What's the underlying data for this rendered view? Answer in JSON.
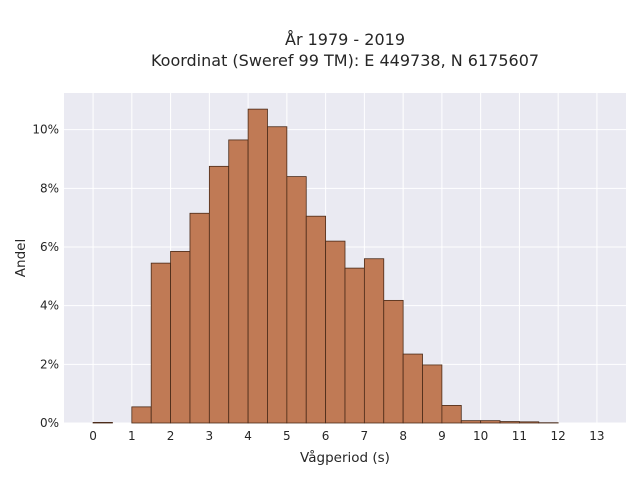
{
  "chart_data": {
    "type": "bar",
    "title": "År 1979 - 2019",
    "subtitle": "Koordinat (Sweref 99 TM): E 449738, N 6175607",
    "xlabel": "Vågperiod (s)",
    "ylabel": "Andel",
    "xlim": [
      -0.75,
      13.75
    ],
    "ylim": [
      0,
      11.25
    ],
    "xticks": [
      0,
      1,
      2,
      3,
      4,
      5,
      6,
      7,
      8,
      9,
      10,
      11,
      12,
      13
    ],
    "yticks": [
      0,
      2,
      4,
      6,
      8,
      10
    ],
    "ytick_labels": [
      "0%",
      "2%",
      "4%",
      "6%",
      "8%",
      "10%"
    ],
    "grid": true,
    "bin_width": 0.5,
    "bin_starts": [
      0,
      0.5,
      1,
      1.5,
      2,
      2.5,
      3,
      3.5,
      4,
      4.5,
      5,
      5.5,
      6,
      6.5,
      7,
      7.5,
      8,
      8.5,
      9,
      9.5,
      10,
      10.5,
      11,
      11.5,
      12,
      12.5
    ],
    "values": [
      0.02,
      0,
      0.55,
      5.45,
      5.85,
      7.15,
      8.75,
      9.65,
      10.7,
      10.1,
      8.4,
      7.05,
      6.2,
      5.28,
      5.6,
      4.18,
      2.35,
      1.98,
      0.6,
      0.08,
      0.08,
      0.05,
      0.04,
      0.01,
      0,
      0
    ],
    "colors": {
      "bar_fill": "#c07a55",
      "bar_edge": "#4a2a18",
      "axes_bg": "#eaeaf2",
      "grid": "#ffffff"
    }
  }
}
